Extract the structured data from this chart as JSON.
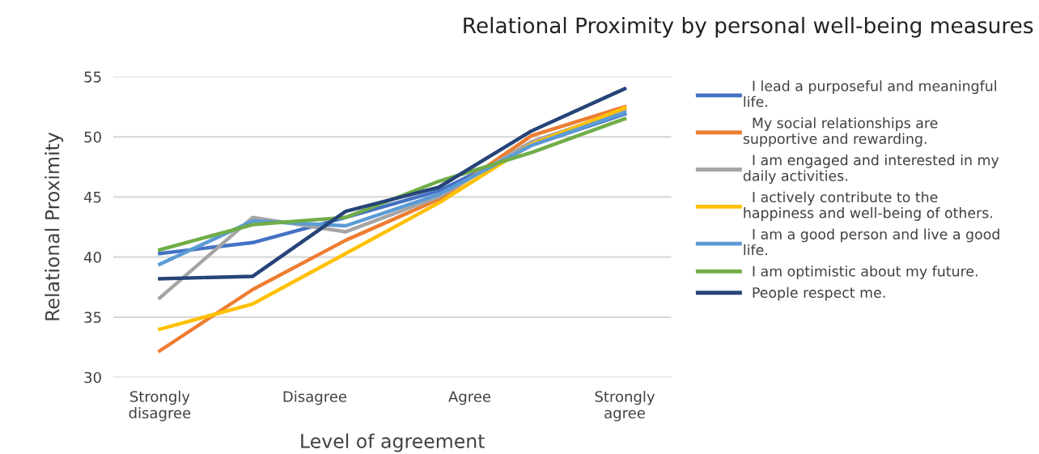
{
  "chart_data": {
    "type": "line",
    "title": "Relational Proximity by personal well-being measures",
    "xlabel": "Level of agreement",
    "ylabel": "Relational Proximity",
    "categories": [
      null,
      null,
      null,
      null,
      null,
      null
    ],
    "annotations": [
      "Strongly\ndisagree",
      "Disagree",
      "Agree",
      "Strongly\nagree"
    ],
    "ylim": [
      30,
      55
    ],
    "yticks": [
      30,
      35,
      40,
      45,
      50,
      55
    ],
    "grid": "y",
    "legend": "right",
    "marker": "none",
    "line_style": "solid",
    "series": [
      {
        "name": "  I lead a purposeful and meaningful\nlife.",
        "color": "#4472c4",
        "values": [
          40.3,
          41.2,
          43.3,
          45.5,
          49.3,
          51.9
        ]
      },
      {
        "name": "  My social relationships are\nsupportive and rewarding.",
        "color": "#ed7d31",
        "values": [
          32.2,
          37.3,
          41.4,
          44.8,
          50.1,
          52.5
        ]
      },
      {
        "name": "  I am engaged and interested in my\ndaily activities.",
        "color": "#a5a5a5",
        "values": [
          36.6,
          43.3,
          42.1,
          45.0,
          49.6,
          52.2
        ]
      },
      {
        "name": "  I actively contribute to the\nhappiness and well-being of others.",
        "color": "#ffc000",
        "values": [
          34.0,
          36.1,
          40.3,
          44.5,
          49.4,
          52.4
        ]
      },
      {
        "name": "  I am a good person and live a good\nlife.",
        "color": "#5b9bd5",
        "values": [
          39.4,
          43.0,
          42.6,
          45.2,
          49.3,
          52.0
        ]
      },
      {
        "name": "  I am optimistic about my future.",
        "color": "#70ad47",
        "values": [
          40.6,
          42.7,
          43.3,
          46.3,
          48.7,
          51.5
        ]
      },
      {
        "name": "  People respect me.",
        "color": "#264478",
        "values": [
          38.2,
          38.4,
          43.8,
          45.8,
          50.5,
          54.0
        ]
      }
    ]
  }
}
